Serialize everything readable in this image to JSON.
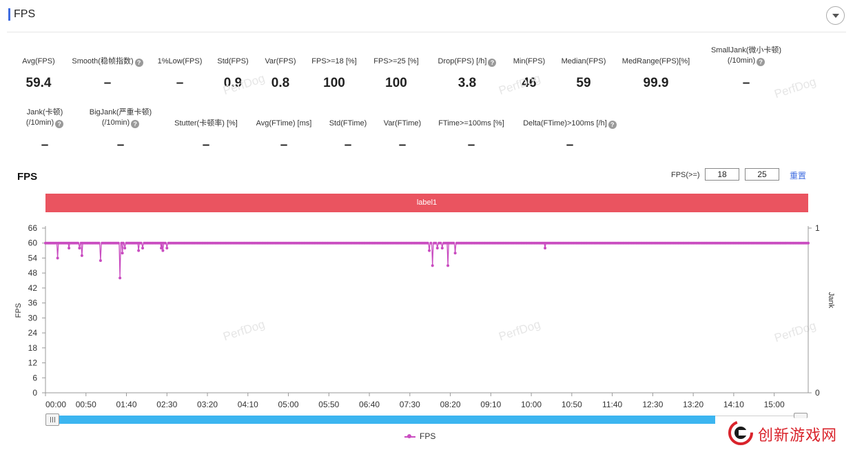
{
  "section": {
    "title": "FPS"
  },
  "metrics_row1": [
    {
      "label": "Avg(FPS)",
      "value": "59.4",
      "help": false
    },
    {
      "label": "Smooth(稳帧指数)",
      "value": "–",
      "help": true
    },
    {
      "label": "1%Low(FPS)",
      "value": "–",
      "help": false
    },
    {
      "label": "Std(FPS)",
      "value": "0.9",
      "help": false
    },
    {
      "label": "Var(FPS)",
      "value": "0.8",
      "help": false
    },
    {
      "label": "FPS>=18 [%]",
      "value": "100",
      "help": false
    },
    {
      "label": "FPS>=25 [%]",
      "value": "100",
      "help": false
    },
    {
      "label": "Drop(FPS) [/h]",
      "value": "3.8",
      "help": true
    },
    {
      "label": "Min(FPS)",
      "value": "46",
      "help": false
    },
    {
      "label": "Median(FPS)",
      "value": "59",
      "help": false
    },
    {
      "label": "MedRange(FPS)[%]",
      "value": "99.9",
      "help": false
    },
    {
      "label": "SmallJank(微小卡顿)",
      "label2": "(/10min)",
      "value": "–",
      "help": true
    }
  ],
  "metrics_row2": [
    {
      "label": "Jank(卡顿)",
      "label2": "(/10min)",
      "value": "–",
      "help": true
    },
    {
      "label": "BigJank(严重卡顿)",
      "label2": "(/10min)",
      "value": "–",
      "help": true
    },
    {
      "label": "Stutter(卡顿率) [%]",
      "value": "–",
      "help": false
    },
    {
      "label": "Avg(FTime) [ms]",
      "value": "–",
      "help": false
    },
    {
      "label": "Std(FTime)",
      "value": "–",
      "help": false
    },
    {
      "label": "Var(FTime)",
      "value": "–",
      "help": false
    },
    {
      "label": "FTime>=100ms [%]",
      "value": "–",
      "help": false
    },
    {
      "label": "Delta(FTime)>100ms [/h]",
      "value": "–",
      "help": true
    }
  ],
  "chart_panel": {
    "title": "FPS",
    "threshold_label": "FPS(>=)",
    "threshold_1": "18",
    "threshold_2": "25",
    "reset_label": "重置",
    "label_bar": "label1",
    "watermark": "PerfDog",
    "legend": "FPS"
  },
  "brand": {
    "text": "创新游戏网"
  },
  "colors": {
    "accent": "#3f6ce0",
    "series": "#c94cc0",
    "label_bar": "#ea5460",
    "slider": "#3cb5f0"
  },
  "chart_data": {
    "type": "line",
    "title": "FPS",
    "xlabel": "",
    "ylabel": "FPS",
    "y2label": "Jank",
    "ylim": [
      0,
      66
    ],
    "y2lim": [
      0,
      1
    ],
    "yticks": [
      0,
      6,
      12,
      18,
      24,
      30,
      36,
      42,
      48,
      54,
      60,
      66
    ],
    "y2ticks": [
      0,
      1
    ],
    "xticks": [
      "00:00",
      "00:50",
      "01:40",
      "02:30",
      "03:20",
      "04:10",
      "05:00",
      "05:50",
      "06:40",
      "07:30",
      "08:20",
      "09:10",
      "10:00",
      "10:50",
      "11:40",
      "12:30",
      "13:20",
      "14:10",
      "15:00"
    ],
    "x_unit": "seconds",
    "xlim": [
      0,
      942
    ],
    "baseline": 60,
    "grid": false,
    "legend": "bottom",
    "series": [
      {
        "name": "FPS",
        "dips": [
          [
            15,
            54
          ],
          [
            29,
            58
          ],
          [
            42,
            58
          ],
          [
            45,
            55
          ],
          [
            68,
            53
          ],
          [
            92,
            46
          ],
          [
            95,
            56
          ],
          [
            98,
            58
          ],
          [
            115,
            57
          ],
          [
            120,
            58
          ],
          [
            143,
            58
          ],
          [
            145,
            57
          ],
          [
            150,
            58
          ],
          [
            474,
            57
          ],
          [
            478,
            51
          ],
          [
            484,
            58
          ],
          [
            490,
            58
          ],
          [
            497,
            51
          ],
          [
            506,
            56
          ],
          [
            617,
            58
          ]
        ]
      }
    ]
  }
}
